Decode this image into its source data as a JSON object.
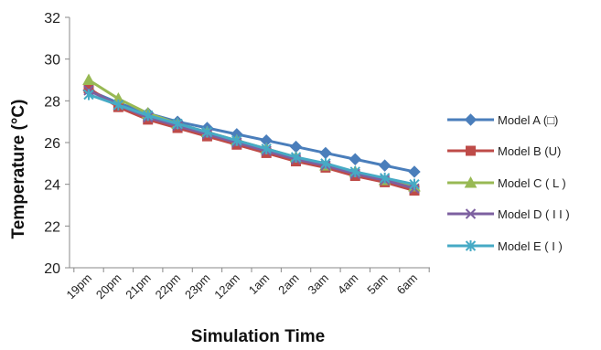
{
  "chart_data": {
    "type": "line",
    "title": "",
    "xlabel": "Simulation Time",
    "ylabel": "Temperature (°C)",
    "categories": [
      "19pm",
      "20pm",
      "21pm",
      "22pm",
      "23pm",
      "12am",
      "1am",
      "2am",
      "3am",
      "4am",
      "5am",
      "6am"
    ],
    "ylim": [
      20,
      32
    ],
    "yticks": [
      20,
      22,
      24,
      26,
      28,
      30,
      32
    ],
    "grid": false,
    "legend_position": "right",
    "series": [
      {
        "name": "Model A (□)",
        "color": "#4a7ebb",
        "marker": "diamond",
        "values": [
          28.5,
          27.9,
          27.4,
          27.0,
          26.7,
          26.4,
          26.1,
          25.8,
          25.5,
          25.2,
          24.9,
          24.6
        ]
      },
      {
        "name": "Model B (U)",
        "color": "#be4b48",
        "marker": "square",
        "values": [
          28.6,
          27.7,
          27.1,
          26.7,
          26.3,
          25.9,
          25.5,
          25.1,
          24.8,
          24.4,
          24.1,
          23.7
        ]
      },
      {
        "name": "Model C ( L )",
        "color": "#98b954",
        "marker": "triangle",
        "values": [
          29.0,
          28.1,
          27.4,
          26.9,
          26.5,
          26.1,
          25.7,
          25.3,
          24.9,
          24.6,
          24.2,
          23.9
        ]
      },
      {
        "name": "Model D ( I I )",
        "color": "#7d60a0",
        "marker": "x",
        "values": [
          28.5,
          27.8,
          27.2,
          26.8,
          26.4,
          26.0,
          25.6,
          25.2,
          24.9,
          24.5,
          24.2,
          23.8
        ]
      },
      {
        "name": "Model E ( I )",
        "color": "#46aac5",
        "marker": "star",
        "values": [
          28.3,
          27.8,
          27.3,
          26.9,
          26.5,
          26.1,
          25.7,
          25.3,
          25.0,
          24.6,
          24.3,
          24.0
        ]
      }
    ]
  }
}
